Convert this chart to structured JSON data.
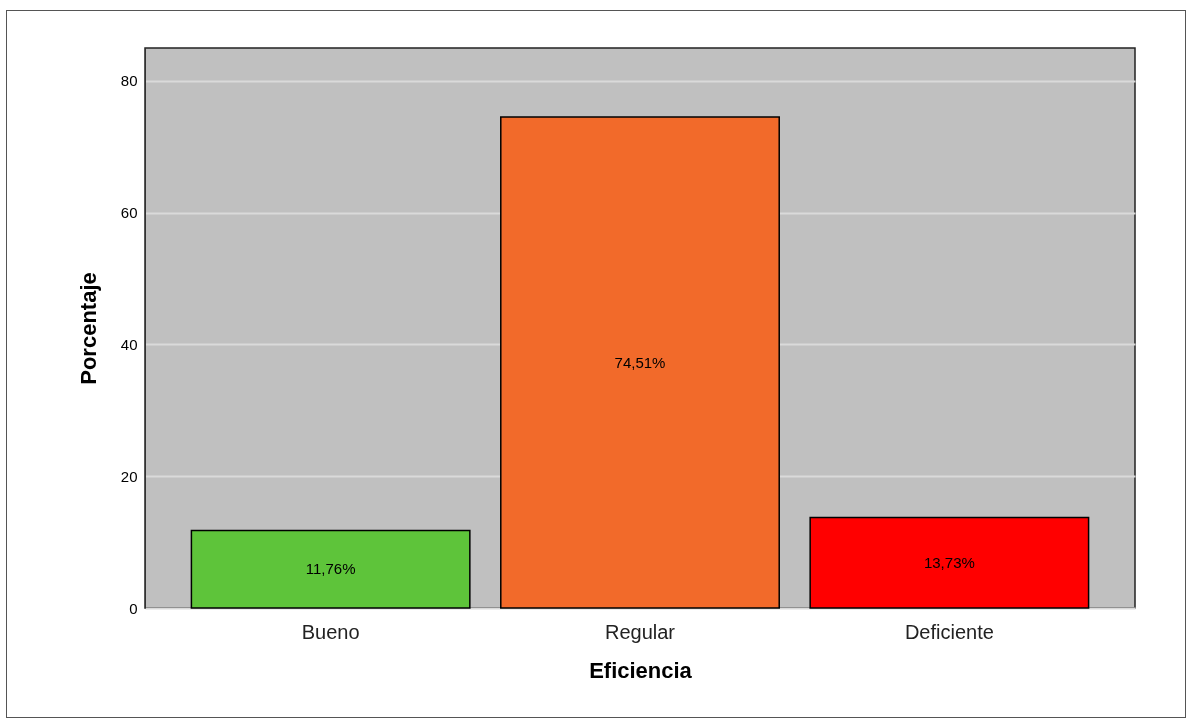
{
  "chart_data": {
    "type": "bar",
    "xlabel": "Eficiencia",
    "ylabel": "Porcentaje",
    "categories": [
      "Bueno",
      "Regular",
      "Deficiente"
    ],
    "values": [
      11.76,
      74.51,
      13.73
    ],
    "colors": [
      "#5ec43a",
      "#f26a2a",
      "#ff0000"
    ],
    "value_labels": [
      "11,76%",
      "74,51%",
      "13,73%"
    ],
    "ylim": [
      0,
      85
    ],
    "yticks": [
      0,
      20,
      40,
      60,
      80
    ],
    "grid": "y"
  }
}
